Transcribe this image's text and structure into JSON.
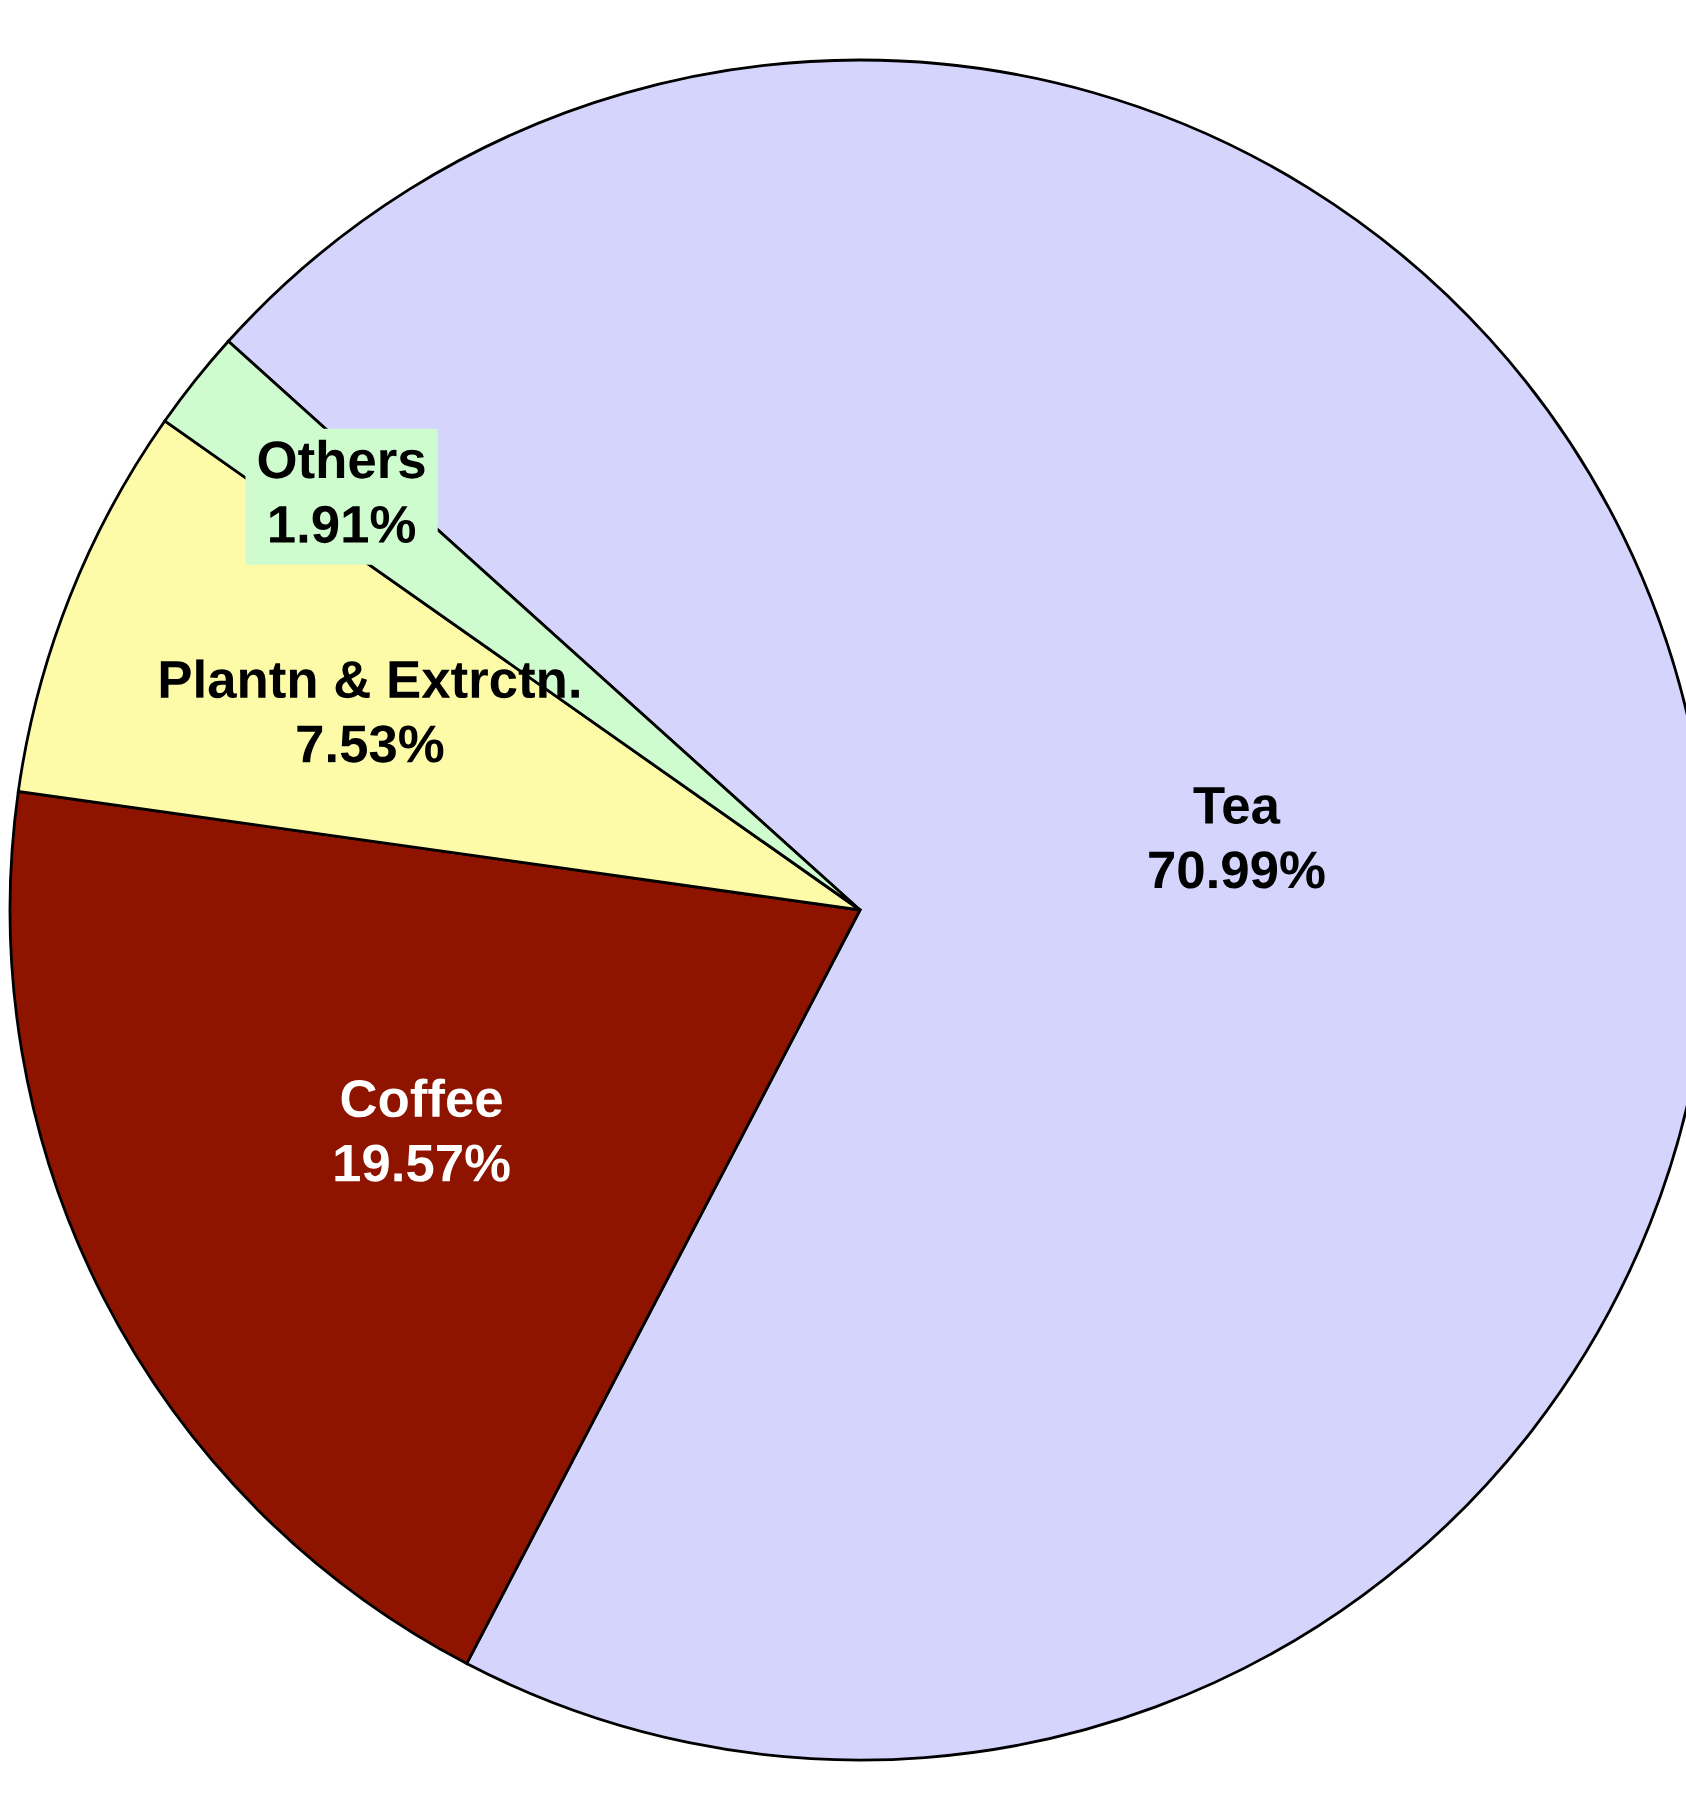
{
  "chart_data": {
    "type": "pie",
    "categories": [
      "Tea",
      "Coffee",
      "Plantn & Extrctn.",
      "Others"
    ],
    "values": [
      70.99,
      19.57,
      7.53,
      1.91
    ],
    "value_labels": [
      "70.99%",
      "19.57%",
      "7.53%",
      "1.91%"
    ],
    "colors": [
      "#d4d4fc",
      "#8f1400",
      "#fdfba8",
      "#cffccf"
    ]
  }
}
